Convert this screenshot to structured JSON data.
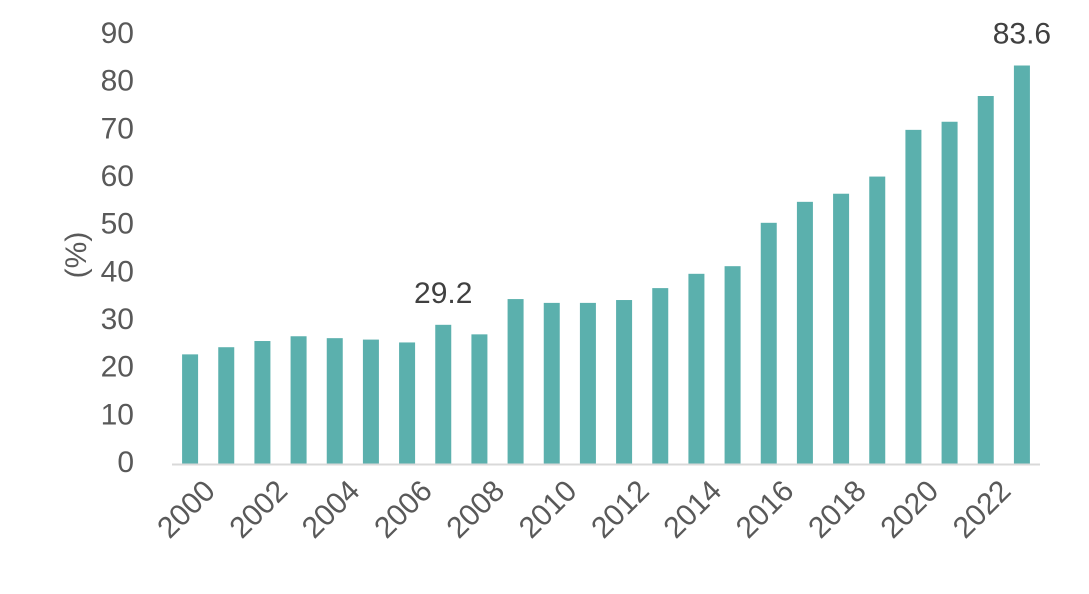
{
  "chart_data": {
    "type": "bar",
    "categories": [
      "2000",
      "2001",
      "2002",
      "2003",
      "2004",
      "2005",
      "2006",
      "2007",
      "2008",
      "2009",
      "2010",
      "2011",
      "2012",
      "2013",
      "2014",
      "2015",
      "2016",
      "2017",
      "2018",
      "2019",
      "2020",
      "2021",
      "2022",
      "2023"
    ],
    "x_tick_labels": [
      "2000",
      "2002",
      "2004",
      "2006",
      "2008",
      "2010",
      "2012",
      "2014",
      "2016",
      "2018",
      "2020",
      "2022"
    ],
    "values": [
      23.0,
      24.5,
      25.8,
      26.8,
      26.4,
      26.1,
      25.5,
      29.2,
      27.2,
      34.6,
      33.8,
      33.8,
      34.4,
      36.9,
      39.9,
      41.5,
      50.6,
      55.0,
      56.7,
      60.3,
      70.1,
      71.8,
      77.2,
      83.6
    ],
    "data_labels": [
      {
        "category": "2007",
        "text": "29.2"
      },
      {
        "category": "2023",
        "text": "83.6"
      }
    ],
    "title": "",
    "xlabel": "",
    "ylabel": "(%)",
    "ylim": [
      0,
      90
    ],
    "yticks": [
      0,
      10,
      20,
      30,
      40,
      50,
      60,
      70,
      80,
      90
    ],
    "grid": false,
    "legend": "none",
    "bar_color": "#5bb0ad",
    "axis_color": "#d9d9d9"
  }
}
